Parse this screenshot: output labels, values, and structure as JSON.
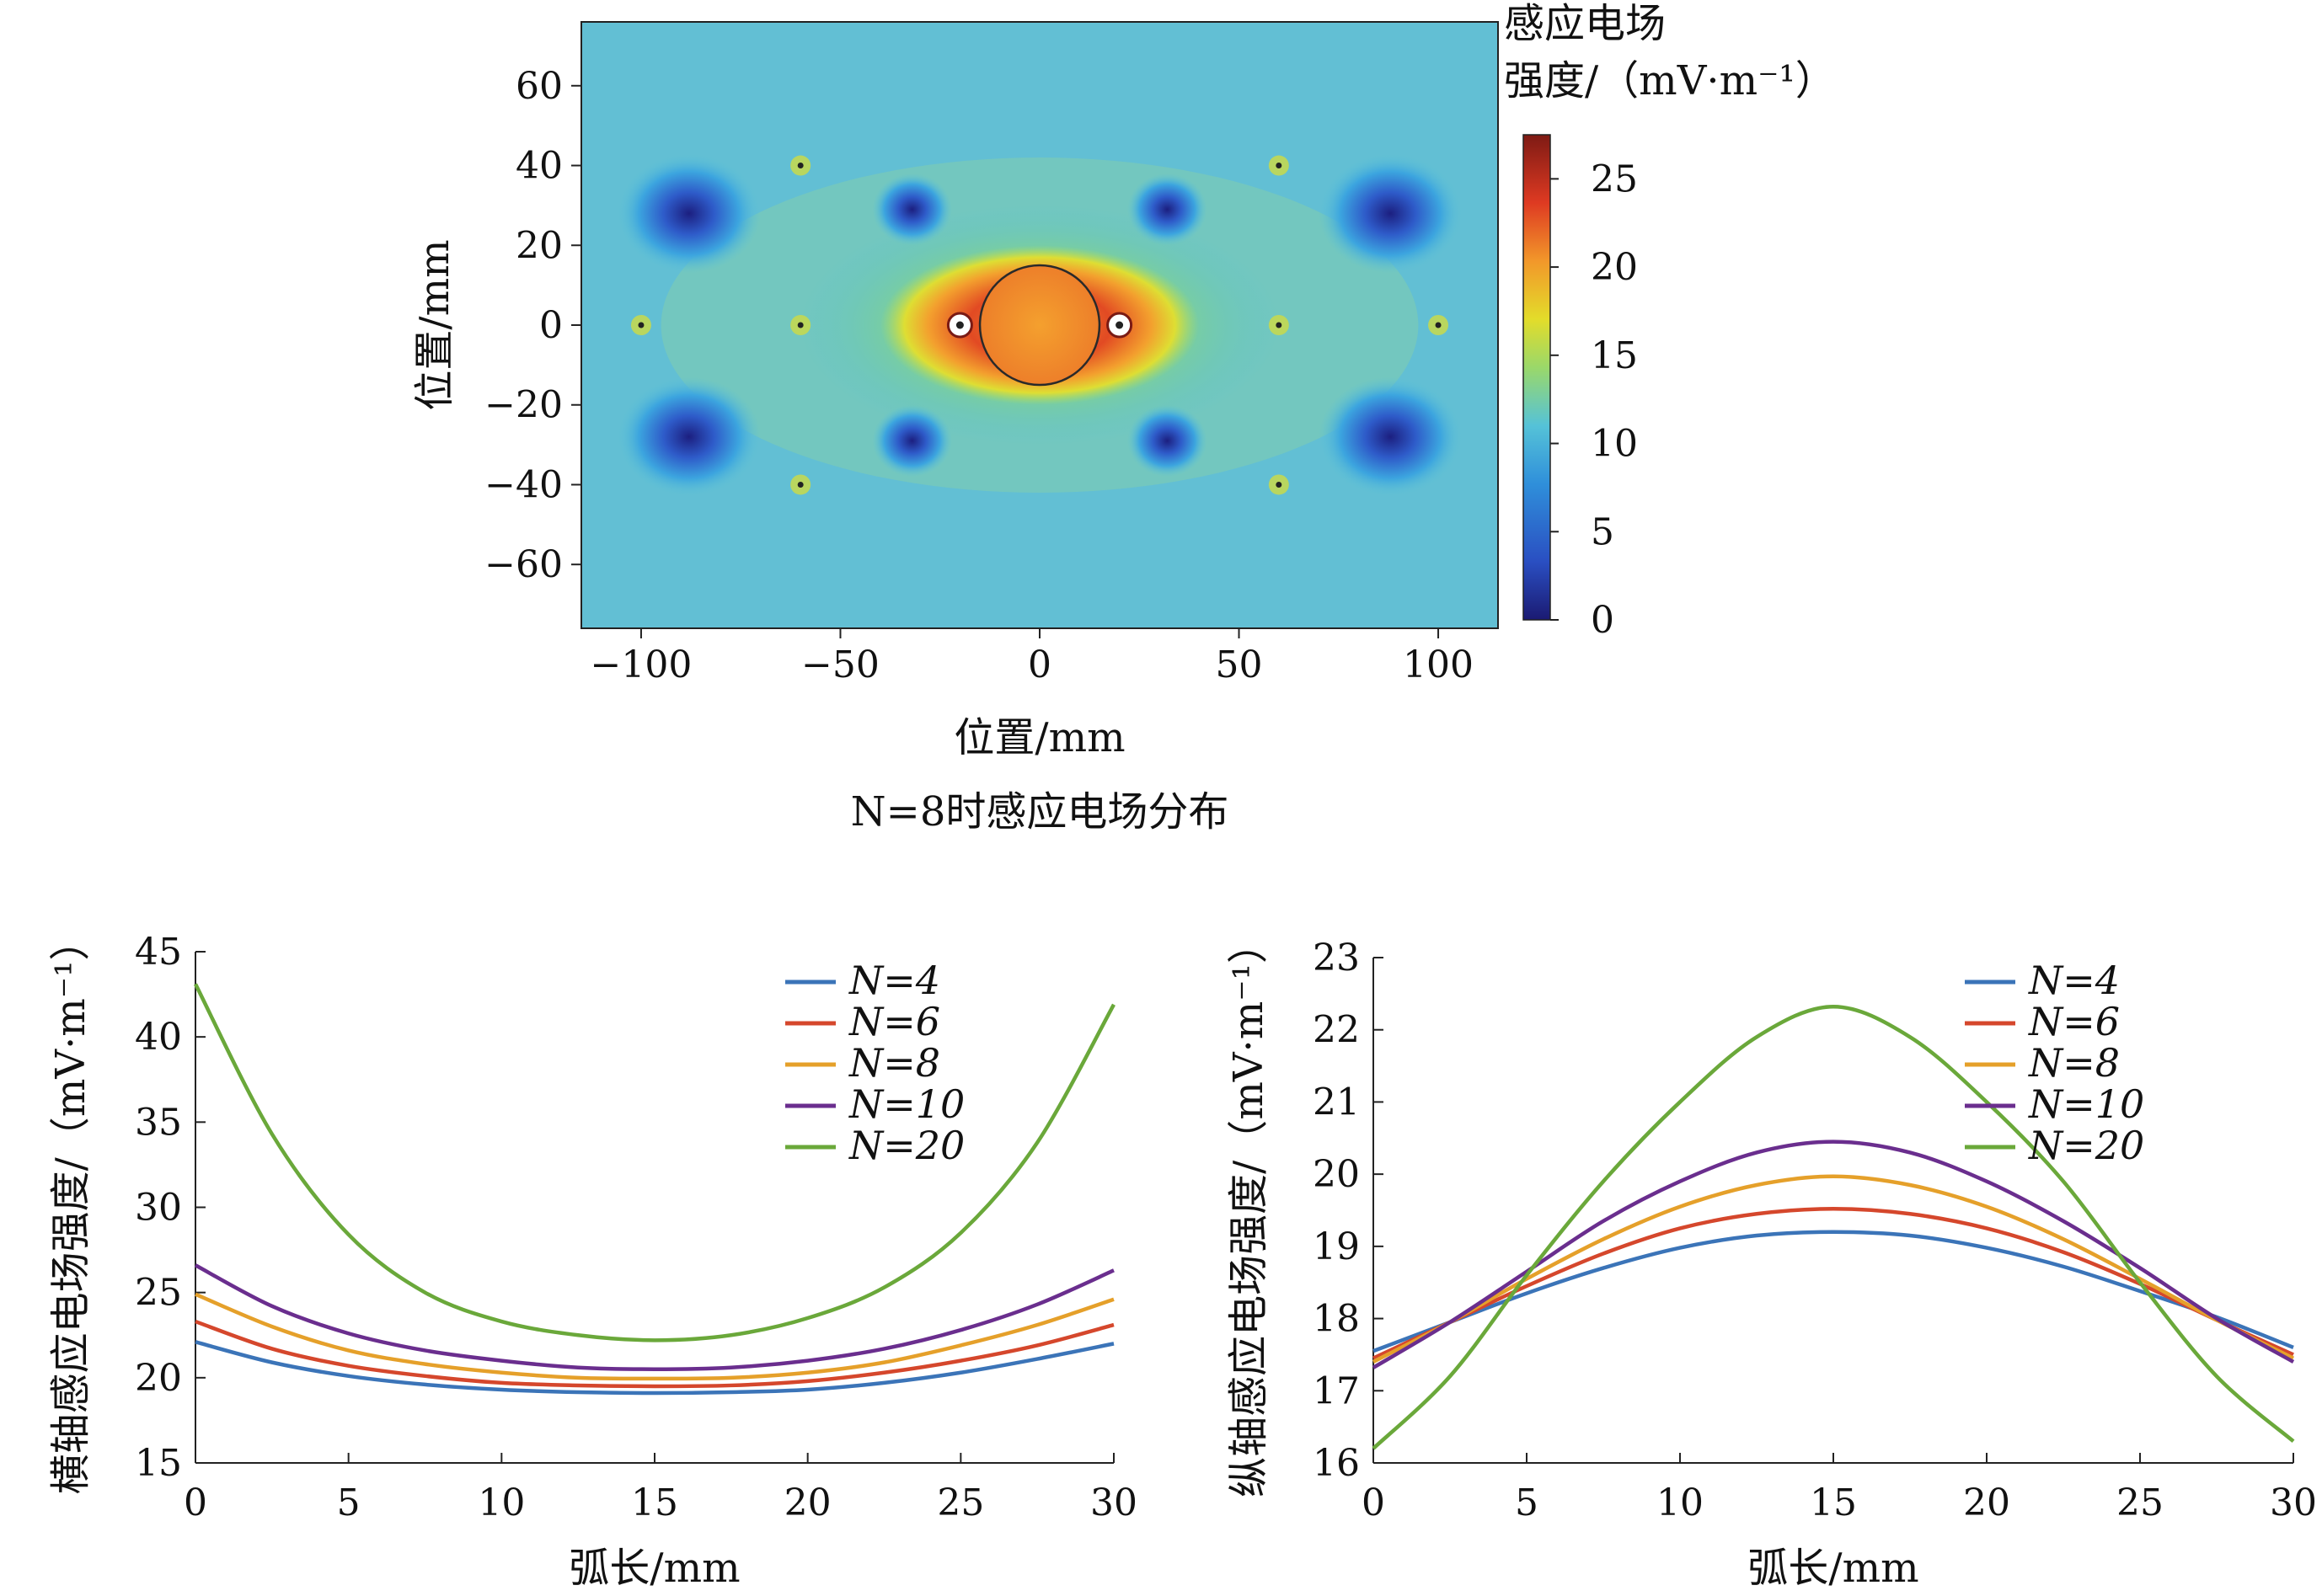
{
  "chart_data": [
    {
      "type": "heatmap",
      "caption": "N=8时感应电场分布",
      "xlabel": "位置/mm",
      "ylabel": "位置/mm",
      "xlim": [
        -115,
        115
      ],
      "ylim": [
        -76,
        76
      ],
      "xticks": [
        -100,
        -50,
        0,
        50,
        100
      ],
      "yticks": [
        -60,
        -40,
        -20,
        0,
        20,
        40,
        60
      ],
      "colorbar": {
        "title_line1": "感应电场",
        "title_line2": "强度/（mV·m⁻¹）",
        "range": [
          0,
          27.5
        ],
        "ticks": [
          0,
          5,
          10,
          15,
          20,
          25
        ],
        "colormap": "jet"
      },
      "coil_circle": {
        "center": [
          0,
          0
        ],
        "radius": 15
      },
      "coil_wires": [
        [
          -20,
          0
        ],
        [
          20,
          0
        ]
      ],
      "field_minima": [
        [
          -88,
          28
        ],
        [
          -88,
          -28
        ],
        [
          88,
          28
        ],
        [
          88,
          -28
        ],
        [
          -32,
          29
        ],
        [
          -32,
          -29
        ],
        [
          32,
          29
        ],
        [
          32,
          -29
        ]
      ],
      "point_markers": [
        [
          -100,
          0
        ],
        [
          -60,
          0
        ],
        [
          60,
          0
        ],
        [
          100,
          0
        ],
        [
          -60,
          40
        ],
        [
          -60,
          -40
        ],
        [
          60,
          40
        ],
        [
          60,
          -40
        ]
      ]
    },
    {
      "type": "line",
      "xlabel": "弧长/mm",
      "ylabel": "横轴感应电场强度/（mV·m⁻¹）",
      "xlim": [
        0,
        30
      ],
      "ylim": [
        15,
        45
      ],
      "xticks": [
        0,
        5,
        10,
        15,
        20,
        25,
        30
      ],
      "yticks": [
        15,
        20,
        25,
        30,
        35,
        40,
        45
      ],
      "legend_position": "top-right",
      "x": [
        0,
        2.5,
        5,
        7.5,
        10,
        12.5,
        15,
        17.5,
        20,
        22.5,
        25,
        27.5,
        30
      ],
      "series": [
        {
          "name": "N=4",
          "color": "#3b74b8",
          "values": [
            22.1,
            20.9,
            20.1,
            19.6,
            19.3,
            19.15,
            19.1,
            19.15,
            19.3,
            19.7,
            20.3,
            21.1,
            22.0
          ]
        },
        {
          "name": "N=6",
          "color": "#d5472c",
          "values": [
            23.3,
            21.7,
            20.7,
            20.1,
            19.7,
            19.55,
            19.5,
            19.55,
            19.8,
            20.3,
            21.0,
            21.9,
            23.1
          ]
        },
        {
          "name": "N=8",
          "color": "#e5a02a",
          "values": [
            24.9,
            23.0,
            21.6,
            20.8,
            20.3,
            20.0,
            19.95,
            20.0,
            20.3,
            20.9,
            21.9,
            23.1,
            24.6
          ]
        },
        {
          "name": "N=10",
          "color": "#6a2e8e",
          "values": [
            26.6,
            24.2,
            22.6,
            21.6,
            21.0,
            20.6,
            20.5,
            20.6,
            21.0,
            21.7,
            22.8,
            24.3,
            26.3
          ]
        },
        {
          "name": "N=20",
          "color": "#6aa83a",
          "values": [
            43.1,
            34.3,
            28.4,
            25.0,
            23.3,
            22.5,
            22.2,
            22.5,
            23.5,
            25.3,
            28.5,
            33.8,
            41.9
          ]
        }
      ]
    },
    {
      "type": "line",
      "xlabel": "弧长/mm",
      "ylabel": "纵轴感应电场强度/（mV·m⁻¹）",
      "xlim": [
        0,
        30
      ],
      "ylim": [
        16,
        23
      ],
      "xticks": [
        0,
        5,
        10,
        15,
        20,
        25,
        30
      ],
      "yticks": [
        16,
        17,
        18,
        19,
        20,
        21,
        22,
        23
      ],
      "legend_position": "top-right",
      "x": [
        0,
        2.5,
        5,
        7.5,
        10,
        12.5,
        15,
        17.5,
        20,
        22.5,
        25,
        27.5,
        30
      ],
      "series": [
        {
          "name": "N=4",
          "color": "#3b74b8",
          "values": [
            17.55,
            17.95,
            18.35,
            18.7,
            18.98,
            19.15,
            19.2,
            19.15,
            18.98,
            18.72,
            18.38,
            18.02,
            17.6
          ]
        },
        {
          "name": "N=6",
          "color": "#d5472c",
          "values": [
            17.45,
            17.95,
            18.45,
            18.9,
            19.25,
            19.45,
            19.52,
            19.45,
            19.25,
            18.92,
            18.48,
            17.98,
            17.5
          ]
        },
        {
          "name": "N=8",
          "color": "#e5a02a",
          "values": [
            17.4,
            17.95,
            18.55,
            19.1,
            19.55,
            19.85,
            19.97,
            19.85,
            19.55,
            19.1,
            18.55,
            17.98,
            17.45
          ]
        },
        {
          "name": "N=10",
          "color": "#6a2e8e",
          "values": [
            17.32,
            17.95,
            18.65,
            19.35,
            19.9,
            20.3,
            20.45,
            20.3,
            19.9,
            19.35,
            18.7,
            18.0,
            17.4
          ]
        },
        {
          "name": "N=20",
          "color": "#6aa83a",
          "values": [
            16.2,
            17.2,
            18.6,
            19.9,
            21.0,
            21.9,
            22.32,
            21.9,
            21.0,
            19.9,
            18.5,
            17.2,
            16.3
          ]
        }
      ]
    }
  ]
}
